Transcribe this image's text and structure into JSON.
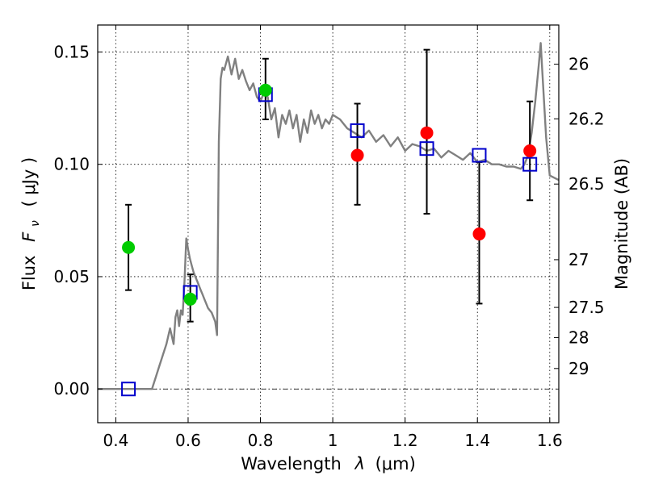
{
  "chart_data": {
    "type": "scatter",
    "xlabel_prefix": "Wavelength",
    "xlabel_symbol": "λ",
    "xlabel_unit": "(μm)",
    "ylabel_prefix": "Flux",
    "ylabel_symbol": "F",
    "ylabel_subscript": "ν",
    "ylabel_unit": "( μJy )",
    "y2label": "Magnitude (AB)",
    "xlim": [
      0.35,
      1.625
    ],
    "ylim": [
      -0.015,
      0.162
    ],
    "grid": true,
    "x_ticks": [
      {
        "value": 0.4,
        "label": "0.4"
      },
      {
        "value": 0.6,
        "label": "0.6"
      },
      {
        "value": 0.8,
        "label": "0.8"
      },
      {
        "value": 1.0,
        "label": "1"
      },
      {
        "value": 1.2,
        "label": "1.2"
      },
      {
        "value": 1.4,
        "label": "1.4"
      },
      {
        "value": 1.6,
        "label": "1.6"
      }
    ],
    "y_ticks": [
      {
        "value": 0.0,
        "label": "0.00"
      },
      {
        "value": 0.05,
        "label": "0.05"
      },
      {
        "value": 0.1,
        "label": "0.10"
      },
      {
        "value": 0.15,
        "label": "0.15"
      }
    ],
    "y2_ticks": [
      {
        "mag": 26,
        "label": "26"
      },
      {
        "mag": 26.2,
        "label": "26.2"
      },
      {
        "mag": 26.5,
        "label": "26.5"
      },
      {
        "mag": 27,
        "label": "27"
      },
      {
        "mag": 27.5,
        "label": "27.5"
      },
      {
        "mag": 28,
        "label": "28"
      },
      {
        "mag": 29,
        "label": "29"
      }
    ],
    "y2_zero_point_ujy": 3631000000,
    "series": [
      {
        "name": "green-points",
        "color": "#00cc00",
        "points": [
          {
            "x": 0.435,
            "y": 0.063,
            "err_low": 0.044,
            "err_high": 0.082
          },
          {
            "x": 0.606,
            "y": 0.04,
            "err_low": 0.03,
            "err_high": 0.051
          },
          {
            "x": 0.814,
            "y": 0.133,
            "err_low": 0.12,
            "err_high": 0.147
          }
        ]
      },
      {
        "name": "red-points",
        "color": "#ff0000",
        "points": [
          {
            "x": 1.068,
            "y": 0.104,
            "err_low": 0.082,
            "err_high": 0.127
          },
          {
            "x": 1.26,
            "y": 0.114,
            "err_low": 0.078,
            "err_high": 0.151
          },
          {
            "x": 1.405,
            "y": 0.069,
            "err_low": 0.038,
            "err_high": 0.101
          },
          {
            "x": 1.545,
            "y": 0.106,
            "err_low": 0.084,
            "err_high": 0.128
          }
        ]
      },
      {
        "name": "model-squares",
        "color": "#0000cc",
        "points": [
          {
            "x": 0.435,
            "y": 0.0
          },
          {
            "x": 0.606,
            "y": 0.043
          },
          {
            "x": 0.814,
            "y": 0.131
          },
          {
            "x": 1.068,
            "y": 0.115
          },
          {
            "x": 1.26,
            "y": 0.107
          },
          {
            "x": 1.405,
            "y": 0.104
          },
          {
            "x": 1.545,
            "y": 0.1
          }
        ]
      }
    ],
    "spectrum": {
      "name": "model-spectrum",
      "color": "#808080",
      "x": [
        0.35,
        0.5,
        0.51,
        0.52,
        0.53,
        0.54,
        0.55,
        0.56,
        0.565,
        0.57,
        0.575,
        0.58,
        0.585,
        0.59,
        0.595,
        0.6,
        0.605,
        0.61,
        0.615,
        0.62,
        0.625,
        0.63,
        0.635,
        0.64,
        0.645,
        0.65,
        0.655,
        0.66,
        0.665,
        0.67,
        0.675,
        0.68,
        0.685,
        0.69,
        0.695,
        0.7,
        0.71,
        0.72,
        0.73,
        0.74,
        0.75,
        0.76,
        0.77,
        0.78,
        0.79,
        0.8,
        0.81,
        0.82,
        0.83,
        0.84,
        0.85,
        0.86,
        0.87,
        0.88,
        0.89,
        0.9,
        0.91,
        0.92,
        0.93,
        0.94,
        0.95,
        0.96,
        0.97,
        0.98,
        0.99,
        1.0,
        1.02,
        1.04,
        1.06,
        1.08,
        1.1,
        1.12,
        1.14,
        1.16,
        1.18,
        1.2,
        1.22,
        1.24,
        1.26,
        1.28,
        1.3,
        1.32,
        1.34,
        1.36,
        1.38,
        1.4,
        1.42,
        1.44,
        1.46,
        1.48,
        1.5,
        1.52,
        1.53,
        1.54,
        1.55,
        1.56,
        1.57,
        1.575,
        1.58,
        1.59,
        1.6,
        1.625
      ],
      "y": [
        0.0,
        0.0,
        0.005,
        0.01,
        0.015,
        0.02,
        0.027,
        0.02,
        0.032,
        0.035,
        0.028,
        0.035,
        0.033,
        0.048,
        0.067,
        0.062,
        0.058,
        0.055,
        0.052,
        0.05,
        0.048,
        0.046,
        0.044,
        0.042,
        0.04,
        0.038,
        0.036,
        0.035,
        0.034,
        0.032,
        0.03,
        0.024,
        0.11,
        0.138,
        0.143,
        0.142,
        0.148,
        0.14,
        0.147,
        0.138,
        0.142,
        0.137,
        0.133,
        0.136,
        0.13,
        0.128,
        0.132,
        0.13,
        0.12,
        0.125,
        0.112,
        0.122,
        0.118,
        0.124,
        0.116,
        0.122,
        0.11,
        0.12,
        0.114,
        0.124,
        0.118,
        0.122,
        0.116,
        0.12,
        0.118,
        0.122,
        0.12,
        0.116,
        0.114,
        0.112,
        0.115,
        0.11,
        0.113,
        0.108,
        0.112,
        0.106,
        0.109,
        0.108,
        0.106,
        0.107,
        0.103,
        0.106,
        0.104,
        0.102,
        0.105,
        0.101,
        0.102,
        0.1,
        0.1,
        0.099,
        0.099,
        0.098,
        0.1,
        0.104,
        0.114,
        0.128,
        0.145,
        0.154,
        0.14,
        0.112,
        0.095,
        0.093
      ]
    }
  }
}
